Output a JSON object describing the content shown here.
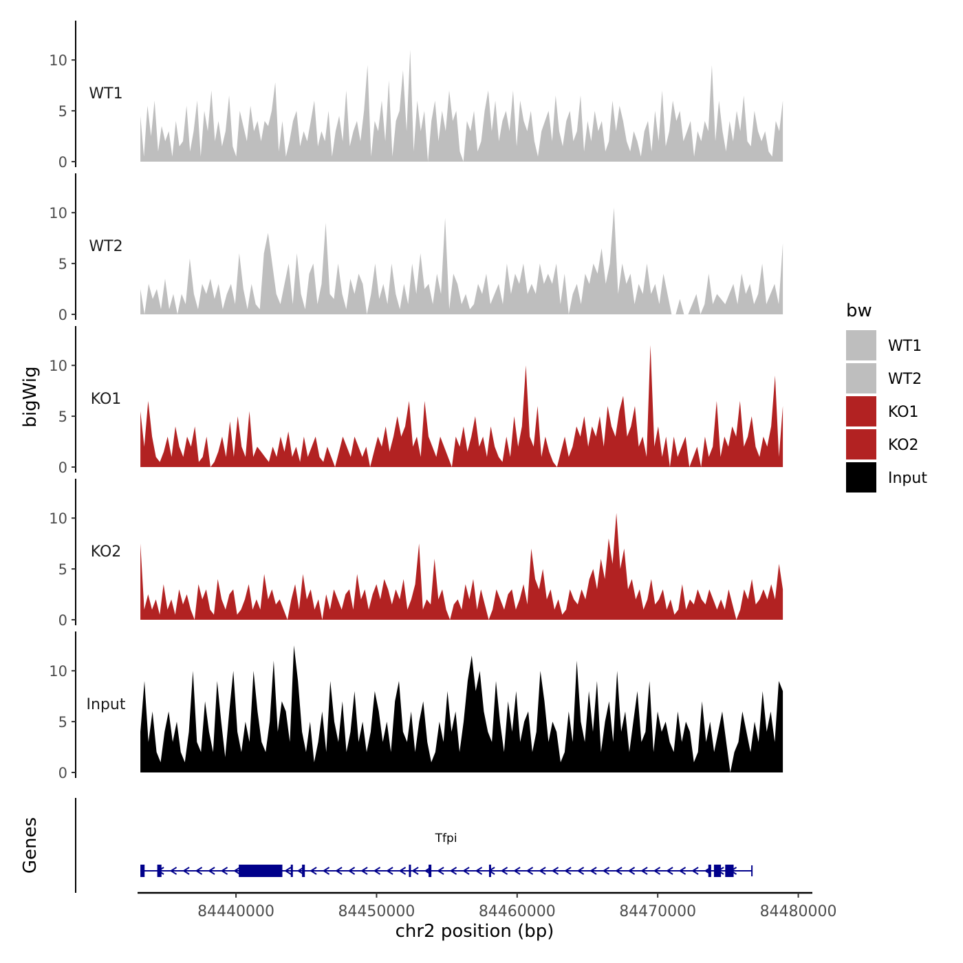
{
  "chart_data": {
    "type": "area",
    "y_axis_title": "bigWig",
    "x_axis_title": "chr2 position (bp)",
    "xlim": [
      84433000,
      84481000
    ],
    "x_ticks": [
      84440000,
      84450000,
      84460000,
      84470000,
      84480000
    ],
    "x_tick_labels": [
      "84440000",
      "84450000",
      "84460000",
      "84470000",
      "84480000"
    ],
    "y_ticks": [
      0,
      5,
      10
    ],
    "y_tick_labels": [
      "0",
      "5",
      "10"
    ],
    "ylim": [
      0,
      13
    ],
    "legend": {
      "title": "bw",
      "entries": [
        {
          "label": "WT1",
          "color": "#bebebe"
        },
        {
          "label": "WT2",
          "color": "#bebebe"
        },
        {
          "label": "KO1",
          "color": "#b22222"
        },
        {
          "label": "KO2",
          "color": "#b22222"
        },
        {
          "label": "Input",
          "color": "#000000"
        }
      ]
    },
    "series": [
      {
        "name": "WT1",
        "color": "#bebebe",
        "x_start": 84433200,
        "x_end": 84478900,
        "values": [
          4.5,
          0.5,
          5.5,
          2.5,
          6,
          1,
          3.5,
          2,
          3,
          0.5,
          4,
          1.5,
          2,
          5.5,
          1,
          3,
          6,
          0.5,
          5,
          3,
          7,
          2,
          4,
          1.5,
          3,
          6.5,
          1.5,
          0.5,
          5,
          3.5,
          2,
          5.5,
          3,
          4,
          2,
          4,
          3.5,
          5,
          7.8,
          1,
          4,
          0.5,
          2,
          4,
          5,
          1.5,
          3,
          2,
          4,
          6,
          1.5,
          3,
          2,
          5,
          0.5,
          3,
          4.5,
          2,
          7,
          1.5,
          3,
          4,
          2,
          5,
          9.5,
          0.5,
          4,
          3,
          6,
          2,
          8,
          0.5,
          4,
          5,
          9,
          3,
          11,
          1,
          6,
          3,
          5,
          0,
          4,
          6,
          2,
          5,
          3,
          7,
          4,
          5,
          1,
          0,
          4,
          3,
          5,
          1,
          2,
          5,
          7,
          3,
          6,
          2,
          4,
          5,
          3,
          7,
          1.5,
          6,
          4,
          3,
          5,
          2,
          0.5,
          3,
          4,
          5,
          2,
          6.5,
          3,
          1.5,
          4,
          5,
          2,
          3,
          6.5,
          1,
          4,
          2,
          5,
          3,
          4,
          1,
          2,
          6,
          3,
          5.5,
          4,
          2,
          1,
          3,
          2,
          0.5,
          3,
          4,
          1,
          5,
          2,
          7,
          1.5,
          3,
          6,
          4,
          5,
          2,
          3,
          4,
          0.5,
          3,
          2,
          4,
          3,
          9.5,
          2,
          6,
          3,
          1,
          4,
          2,
          5,
          3,
          6.5,
          2,
          1.5,
          5,
          3,
          2,
          3,
          1,
          0.5,
          4,
          3,
          6
        ]
      },
      {
        "name": "WT2",
        "color": "#bebebe",
        "x_start": 84433200,
        "x_end": 84478900,
        "values": [
          2.5,
          0,
          3,
          1.5,
          2.5,
          0.5,
          3.5,
          0.5,
          2,
          0,
          2,
          1,
          5.5,
          2,
          0.5,
          3,
          2,
          3.5,
          1.5,
          3,
          0.5,
          2,
          3,
          1,
          6,
          2.5,
          0.5,
          3,
          1,
          0.5,
          6,
          8,
          5,
          2,
          1,
          3,
          5,
          1,
          6,
          2,
          0.5,
          4,
          5,
          1,
          3,
          9,
          2,
          1.5,
          5,
          2,
          0.5,
          3.5,
          2,
          4,
          3,
          0,
          2,
          5,
          1.5,
          3,
          1,
          5,
          2,
          0.5,
          3,
          1,
          5,
          2,
          6,
          2.5,
          3,
          1,
          4,
          2,
          9.5,
          0.5,
          4,
          3,
          1,
          2,
          0.5,
          1,
          3,
          2,
          4,
          1,
          2,
          3,
          1,
          5,
          2,
          4,
          3,
          5,
          2,
          3,
          2,
          5,
          3,
          4,
          3,
          5,
          1,
          4,
          0,
          2,
          3,
          1,
          4,
          3,
          5,
          4,
          6.5,
          3,
          5,
          10.5,
          2,
          5,
          3,
          4,
          1,
          3,
          2,
          5,
          2,
          3,
          1,
          4,
          2,
          0,
          0,
          1.5,
          0,
          0,
          1,
          2,
          0,
          1,
          4,
          1,
          2,
          1.5,
          1,
          2,
          3,
          1,
          4,
          2,
          3,
          1,
          2,
          5,
          1,
          2,
          3,
          1,
          7
        ]
      },
      {
        "name": "KO1",
        "color": "#b22222",
        "x_start": 84433200,
        "x_end": 84478900,
        "values": [
          5.5,
          2,
          6.5,
          3,
          1,
          0.5,
          1.5,
          3,
          1,
          4,
          2,
          1,
          3,
          2,
          4,
          0.5,
          1,
          3,
          0,
          0.5,
          1.5,
          3,
          1,
          4.5,
          1,
          5,
          2,
          1,
          5.5,
          1,
          2,
          1.5,
          1,
          0.5,
          2,
          1,
          3,
          1.5,
          3.5,
          1,
          2,
          0.5,
          3,
          1,
          2,
          3,
          1,
          0.5,
          2,
          1,
          0,
          1.5,
          3,
          2,
          1,
          3,
          2,
          1,
          2,
          0,
          1.5,
          3,
          2,
          4,
          1.5,
          3,
          5,
          3,
          4,
          6.5,
          2,
          3,
          1,
          6.5,
          3,
          2,
          1,
          3,
          2,
          1,
          0,
          3,
          2,
          4,
          1.5,
          3,
          5,
          2,
          3,
          1,
          4,
          2,
          1,
          0.5,
          3,
          1,
          5,
          2,
          4,
          10,
          3,
          2,
          6,
          1,
          3,
          1.5,
          0.5,
          0,
          1.5,
          3,
          1,
          2,
          4,
          3,
          5,
          2,
          4,
          3,
          5,
          2,
          6,
          4,
          3,
          5.5,
          7,
          3,
          4,
          6,
          2,
          3,
          1,
          12,
          2,
          4,
          1,
          3,
          0,
          3,
          1,
          2,
          3,
          0,
          1,
          2,
          0,
          3,
          1,
          2,
          6.5,
          1,
          3,
          2,
          4,
          3,
          6.5,
          2,
          3,
          5,
          2,
          1,
          3,
          2,
          4,
          9,
          1,
          6
        ]
      },
      {
        "name": "KO2",
        "color": "#b22222",
        "x_start": 84433200,
        "x_end": 84478900,
        "values": [
          7.5,
          1,
          2.5,
          1,
          2,
          0.5,
          3.5,
          1,
          2,
          0.5,
          3,
          1.5,
          2.5,
          1,
          0,
          3.5,
          2,
          3,
          1,
          0.5,
          4,
          2,
          1,
          2.5,
          3,
          0.5,
          1,
          2,
          3.5,
          1,
          2,
          1,
          4.5,
          2,
          3,
          1.5,
          2,
          1,
          0,
          2,
          3.5,
          1,
          4.5,
          2,
          3,
          1,
          2,
          0,
          2.5,
          1,
          3,
          2,
          1,
          2.5,
          3,
          1,
          4.5,
          2,
          3,
          1,
          2.5,
          3.5,
          2,
          4,
          3,
          1.5,
          3,
          2,
          4,
          1,
          2,
          3.5,
          7.5,
          1,
          2,
          1.5,
          6,
          2,
          3,
          1,
          0,
          1.5,
          2,
          1,
          3.5,
          2,
          4,
          1,
          3,
          1.5,
          0,
          1,
          3,
          2,
          1,
          2.5,
          3,
          1,
          2,
          3.5,
          1.5,
          7,
          4,
          3,
          5,
          2,
          3,
          1,
          2,
          0.5,
          1,
          3,
          2,
          1.5,
          3,
          2,
          4,
          5,
          3,
          6,
          4,
          8,
          5.5,
          10.5,
          5,
          7,
          3,
          4,
          2,
          3,
          1,
          2,
          4,
          1.5,
          2,
          3,
          1,
          2,
          0.5,
          1,
          3.5,
          1,
          2,
          1.5,
          3,
          2,
          1.5,
          3,
          2,
          1,
          2,
          1,
          3,
          1.5,
          0,
          1,
          3,
          2,
          4,
          1.5,
          2,
          3,
          2,
          3.5,
          2,
          5.5,
          3
        ]
      },
      {
        "name": "Input",
        "color": "#000000",
        "x_start": 84433200,
        "x_end": 84478900,
        "values": [
          4,
          9,
          3,
          6,
          2,
          1,
          4,
          6,
          3,
          5,
          2,
          1,
          4,
          10,
          3,
          2,
          7,
          4,
          2,
          9,
          5,
          1.5,
          6,
          10,
          4,
          2,
          5,
          3,
          10,
          6,
          3,
          2,
          5,
          11,
          4,
          7,
          6,
          3,
          12.5,
          9,
          4,
          2,
          5,
          1,
          3,
          6,
          2,
          9,
          5,
          3,
          7,
          2,
          4,
          8,
          3,
          5,
          2,
          4,
          8,
          6,
          3,
          5,
          2,
          7,
          9,
          4,
          3,
          6,
          2,
          5,
          7,
          3,
          1,
          2,
          5,
          3,
          8,
          4,
          6,
          2,
          5,
          9,
          11.5,
          8,
          10,
          6,
          4,
          3,
          9,
          5,
          2,
          7,
          4,
          8,
          3,
          5,
          6,
          2,
          4,
          10,
          7,
          3,
          5,
          4,
          1,
          2,
          6,
          3,
          11,
          5,
          3,
          8,
          4,
          9,
          2,
          5,
          7,
          3,
          10,
          4,
          6,
          2,
          5,
          8,
          3,
          4,
          9,
          2,
          6,
          4,
          5,
          3,
          2,
          6,
          3,
          5,
          4,
          1,
          2,
          7,
          3,
          5,
          2,
          4,
          6,
          3,
          0,
          2,
          3,
          6,
          4,
          2,
          5,
          3,
          8,
          4,
          6,
          3,
          9,
          8
        ]
      }
    ],
    "gene_track": {
      "panel_label": "Genes",
      "gene_name": "Tfpi",
      "color": "#00008b",
      "strand": "-",
      "start": 84433200,
      "end": 84476700,
      "exons": [
        {
          "start": 84433200,
          "end": 84433500
        },
        {
          "start": 84434400,
          "end": 84434700
        },
        {
          "start": 84440200,
          "end": 84443300
        },
        {
          "start": 84443900,
          "end": 84444000
        },
        {
          "start": 84444700,
          "end": 84444900
        },
        {
          "start": 84452300,
          "end": 84452400
        },
        {
          "start": 84453700,
          "end": 84453900
        },
        {
          "start": 84458000,
          "end": 84458100
        },
        {
          "start": 84473600,
          "end": 84473800
        },
        {
          "start": 84474000,
          "end": 84474500
        },
        {
          "start": 84474800,
          "end": 84475400
        }
      ]
    }
  }
}
